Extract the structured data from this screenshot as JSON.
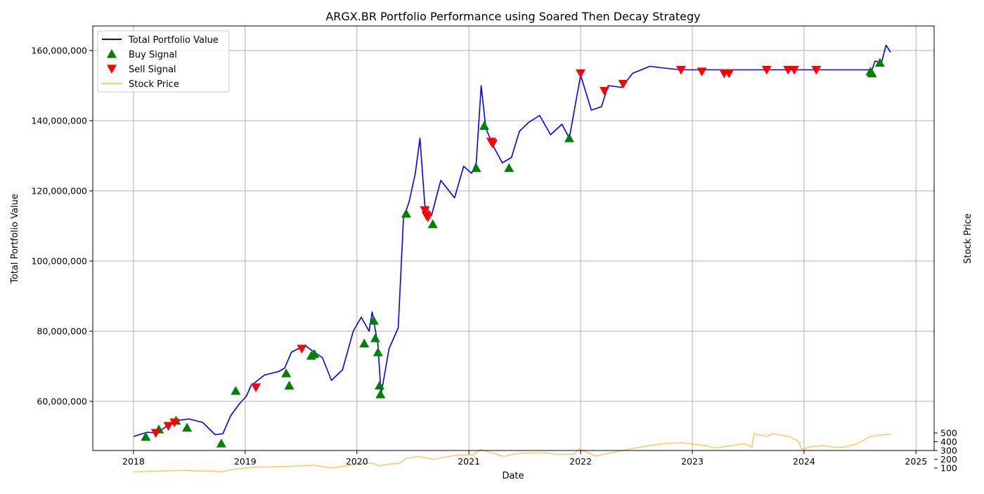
{
  "chart_data": {
    "type": "line",
    "title": "ARGX.BR Portfolio Performance using Soared Then Decay Strategy",
    "xlabel": "Date",
    "ylabel": "Total Portfolio Value",
    "ylabel_right": "Stock Price",
    "xlim": [
      "2017-08-21",
      "2025-03-01"
    ],
    "ylim": [
      46000000,
      167000000
    ],
    "ylim_right": [
      30000,
      515000
    ],
    "x_ticks": [
      "2018-01-01",
      "2019-01-01",
      "2020-01-01",
      "2021-01-01",
      "2022-01-01",
      "2023-01-01",
      "2024-01-01",
      "2025-01-01"
    ],
    "x_tick_labels": [
      "2018",
      "2019",
      "2020",
      "2021",
      "2022",
      "2023",
      "2024",
      "2025"
    ],
    "y_ticks": [
      60000000,
      80000000,
      100000000,
      120000000,
      140000000,
      160000000
    ],
    "y_tick_labels": [
      "60,000,000",
      "80,000,000",
      "100,000,000",
      "120,000,000",
      "140,000,000",
      "160,000,000"
    ],
    "y_right_ticks": [
      100,
      200,
      300,
      400,
      500
    ],
    "y_right_tick_labels": [
      "100",
      "200",
      "300",
      "400",
      "500"
    ],
    "grid": true,
    "legend_position": "top-left",
    "legend": [
      "Total Portfolio Value",
      "Buy Signal",
      "Sell Signal",
      "Stock Price"
    ],
    "colors": {
      "portfolio": "#0000ff",
      "buy": "#008000",
      "sell": "#ff0000",
      "stock": "#ffa500"
    },
    "series": [
      {
        "name": "Total Portfolio Value",
        "axis": "left",
        "points": [
          [
            "2018-01-01",
            50000000
          ],
          [
            "2018-02-15",
            51200000
          ],
          [
            "2018-03-20",
            51000000
          ],
          [
            "2018-04-20",
            53000000
          ],
          [
            "2018-05-20",
            54500000
          ],
          [
            "2018-07-01",
            55000000
          ],
          [
            "2018-08-15",
            54000000
          ],
          [
            "2018-09-25",
            50500000
          ],
          [
            "2018-10-20",
            50800000
          ],
          [
            "2018-11-15",
            56000000
          ],
          [
            "2018-12-15",
            59500000
          ],
          [
            "2019-01-05",
            61500000
          ],
          [
            "2019-01-20",
            64500000
          ],
          [
            "2019-03-05",
            67500000
          ],
          [
            "2019-04-20",
            68500000
          ],
          [
            "2019-05-10",
            69500000
          ],
          [
            "2019-06-01",
            74000000
          ],
          [
            "2019-07-15",
            76000000
          ],
          [
            "2019-08-15",
            74000000
          ],
          [
            "2019-09-10",
            72500000
          ],
          [
            "2019-10-10",
            66000000
          ],
          [
            "2019-11-15",
            69000000
          ],
          [
            "2019-12-20",
            80000000
          ],
          [
            "2020-01-15",
            84000000
          ],
          [
            "2020-02-10",
            80000000
          ],
          [
            "2020-02-20",
            85500000
          ],
          [
            "2020-03-10",
            76000000
          ],
          [
            "2020-03-20",
            62000000
          ],
          [
            "2020-04-15",
            75000000
          ],
          [
            "2020-05-15",
            81000000
          ],
          [
            "2020-06-01",
            112000000
          ],
          [
            "2020-06-20",
            117000000
          ],
          [
            "2020-07-10",
            125000000
          ],
          [
            "2020-07-25",
            135000000
          ],
          [
            "2020-08-10",
            116000000
          ],
          [
            "2020-09-01",
            113000000
          ],
          [
            "2020-10-01",
            123000000
          ],
          [
            "2020-11-15",
            118000000
          ],
          [
            "2020-12-15",
            127000000
          ],
          [
            "2021-01-10",
            125000000
          ],
          [
            "2021-01-25",
            128000000
          ],
          [
            "2021-02-10",
            150000000
          ],
          [
            "2021-02-25",
            138000000
          ],
          [
            "2021-03-20",
            133000000
          ],
          [
            "2021-04-20",
            128000000
          ],
          [
            "2021-05-20",
            129500000
          ],
          [
            "2021-06-15",
            137000000
          ],
          [
            "2021-07-15",
            139500000
          ],
          [
            "2021-08-20",
            141500000
          ],
          [
            "2021-09-25",
            136000000
          ],
          [
            "2021-11-01",
            139000000
          ],
          [
            "2021-11-25",
            135000000
          ],
          [
            "2022-01-01",
            153000000
          ],
          [
            "2022-02-05",
            143000000
          ],
          [
            "2022-03-10",
            144000000
          ],
          [
            "2022-04-01",
            150000000
          ],
          [
            "2022-05-15",
            149500000
          ],
          [
            "2022-06-20",
            153500000
          ],
          [
            "2022-08-15",
            155500000
          ],
          [
            "2022-10-01",
            155000000
          ],
          [
            "2022-11-25",
            154500000
          ],
          [
            "2023-02-15",
            154500000
          ],
          [
            "2023-06-01",
            154500000
          ],
          [
            "2023-08-01",
            154500000
          ],
          [
            "2024-01-01",
            154500000
          ],
          [
            "2024-06-01",
            154500000
          ],
          [
            "2024-08-10",
            154500000
          ],
          [
            "2024-08-20",
            157000000
          ],
          [
            "2024-09-10",
            156500000
          ],
          [
            "2024-09-25",
            161500000
          ],
          [
            "2024-10-10",
            159500000
          ]
        ]
      },
      {
        "name": "Stock Price",
        "axis": "right",
        "points": [
          [
            "2018-01-01",
            55
          ],
          [
            "2018-03-01",
            62
          ],
          [
            "2018-05-01",
            68
          ],
          [
            "2018-06-15",
            73
          ],
          [
            "2018-08-01",
            65
          ],
          [
            "2018-09-15",
            66
          ],
          [
            "2018-10-15",
            55
          ],
          [
            "2018-11-20",
            85
          ],
          [
            "2018-12-20",
            95
          ],
          [
            "2019-01-20",
            105
          ],
          [
            "2019-03-01",
            112
          ],
          [
            "2019-04-20",
            115
          ],
          [
            "2019-06-15",
            122
          ],
          [
            "2019-08-15",
            132
          ],
          [
            "2019-10-10",
            100
          ],
          [
            "2019-12-01",
            125
          ],
          [
            "2020-01-20",
            155
          ],
          [
            "2020-02-20",
            155
          ],
          [
            "2020-03-15",
            125
          ],
          [
            "2020-04-15",
            143
          ],
          [
            "2020-05-20",
            155
          ],
          [
            "2020-06-10",
            210
          ],
          [
            "2020-07-20",
            232
          ],
          [
            "2020-09-10",
            200
          ],
          [
            "2020-10-15",
            225
          ],
          [
            "2020-11-20",
            245
          ],
          [
            "2020-12-20",
            253
          ],
          [
            "2021-01-15",
            250
          ],
          [
            "2021-02-08",
            312
          ],
          [
            "2021-03-20",
            270
          ],
          [
            "2021-04-25",
            232
          ],
          [
            "2021-06-01",
            262
          ],
          [
            "2021-07-20",
            272
          ],
          [
            "2021-09-10",
            272
          ],
          [
            "2021-10-20",
            255
          ],
          [
            "2021-12-10",
            258
          ],
          [
            "2021-12-28",
            320
          ],
          [
            "2022-02-20",
            235
          ],
          [
            "2022-03-20",
            260
          ],
          [
            "2022-05-10",
            295
          ],
          [
            "2022-06-15",
            320
          ],
          [
            "2022-08-15",
            358
          ],
          [
            "2022-10-10",
            382
          ],
          [
            "2022-12-01",
            388
          ],
          [
            "2023-02-10",
            357
          ],
          [
            "2023-03-20",
            328
          ],
          [
            "2023-05-01",
            352
          ],
          [
            "2023-06-20",
            378
          ],
          [
            "2023-07-15",
            340
          ],
          [
            "2023-07-22",
            493
          ],
          [
            "2023-09-01",
            462
          ],
          [
            "2023-09-20",
            492
          ],
          [
            "2023-11-15",
            458
          ],
          [
            "2023-12-15",
            402
          ],
          [
            "2023-12-25",
            310
          ],
          [
            "2024-01-15",
            335
          ],
          [
            "2024-03-01",
            357
          ],
          [
            "2024-04-15",
            332
          ],
          [
            "2024-05-15",
            340
          ],
          [
            "2024-06-15",
            370
          ],
          [
            "2024-07-10",
            410
          ],
          [
            "2024-08-01",
            455
          ],
          [
            "2024-09-01",
            475
          ],
          [
            "2024-10-10",
            487
          ]
        ]
      }
    ],
    "buy_signals": [
      [
        "2018-02-10",
        49900000
      ],
      [
        "2018-03-25",
        52000000
      ],
      [
        "2018-05-20",
        54500000
      ],
      [
        "2018-06-25",
        52500000
      ],
      [
        "2018-10-15",
        48000000
      ],
      [
        "2018-12-01",
        63000000
      ],
      [
        "2019-05-15",
        68000000
      ],
      [
        "2019-05-25",
        64500000
      ],
      [
        "2019-08-05",
        73000000
      ],
      [
        "2019-08-15",
        73500000
      ],
      [
        "2020-01-25",
        76500000
      ],
      [
        "2020-02-25",
        83000000
      ],
      [
        "2020-03-01",
        78000000
      ],
      [
        "2020-03-10",
        74000000
      ],
      [
        "2020-03-15",
        64500000
      ],
      [
        "2020-03-18",
        62000000
      ],
      [
        "2020-06-10",
        113500000
      ],
      [
        "2020-09-05",
        110500000
      ],
      [
        "2021-01-25",
        126500000
      ],
      [
        "2021-02-20",
        138500000
      ],
      [
        "2021-05-12",
        126500000
      ],
      [
        "2021-11-25",
        135000000
      ],
      [
        "2024-08-05",
        154000000
      ],
      [
        "2024-08-10",
        153500000
      ],
      [
        "2024-09-05",
        156500000
      ]
    ],
    "sell_signals": [
      [
        "2018-03-15",
        51000000
      ],
      [
        "2018-04-25",
        53000000
      ],
      [
        "2018-05-15",
        54000000
      ],
      [
        "2019-02-05",
        64000000
      ],
      [
        "2019-07-05",
        75000000
      ],
      [
        "2020-08-10",
        114500000
      ],
      [
        "2020-08-15",
        113000000
      ],
      [
        "2020-08-20",
        112500000
      ],
      [
        "2021-03-15",
        134000000
      ],
      [
        "2021-03-20",
        133500000
      ],
      [
        "2022-01-01",
        153500000
      ],
      [
        "2022-03-20",
        148500000
      ],
      [
        "2022-05-20",
        150500000
      ],
      [
        "2022-11-25",
        154500000
      ],
      [
        "2023-02-01",
        154000000
      ],
      [
        "2023-04-15",
        153500000
      ],
      [
        "2023-05-01",
        153500000
      ],
      [
        "2023-09-01",
        154500000
      ],
      [
        "2023-11-10",
        154500000
      ],
      [
        "2023-11-30",
        154500000
      ],
      [
        "2024-02-10",
        154500000
      ]
    ]
  }
}
